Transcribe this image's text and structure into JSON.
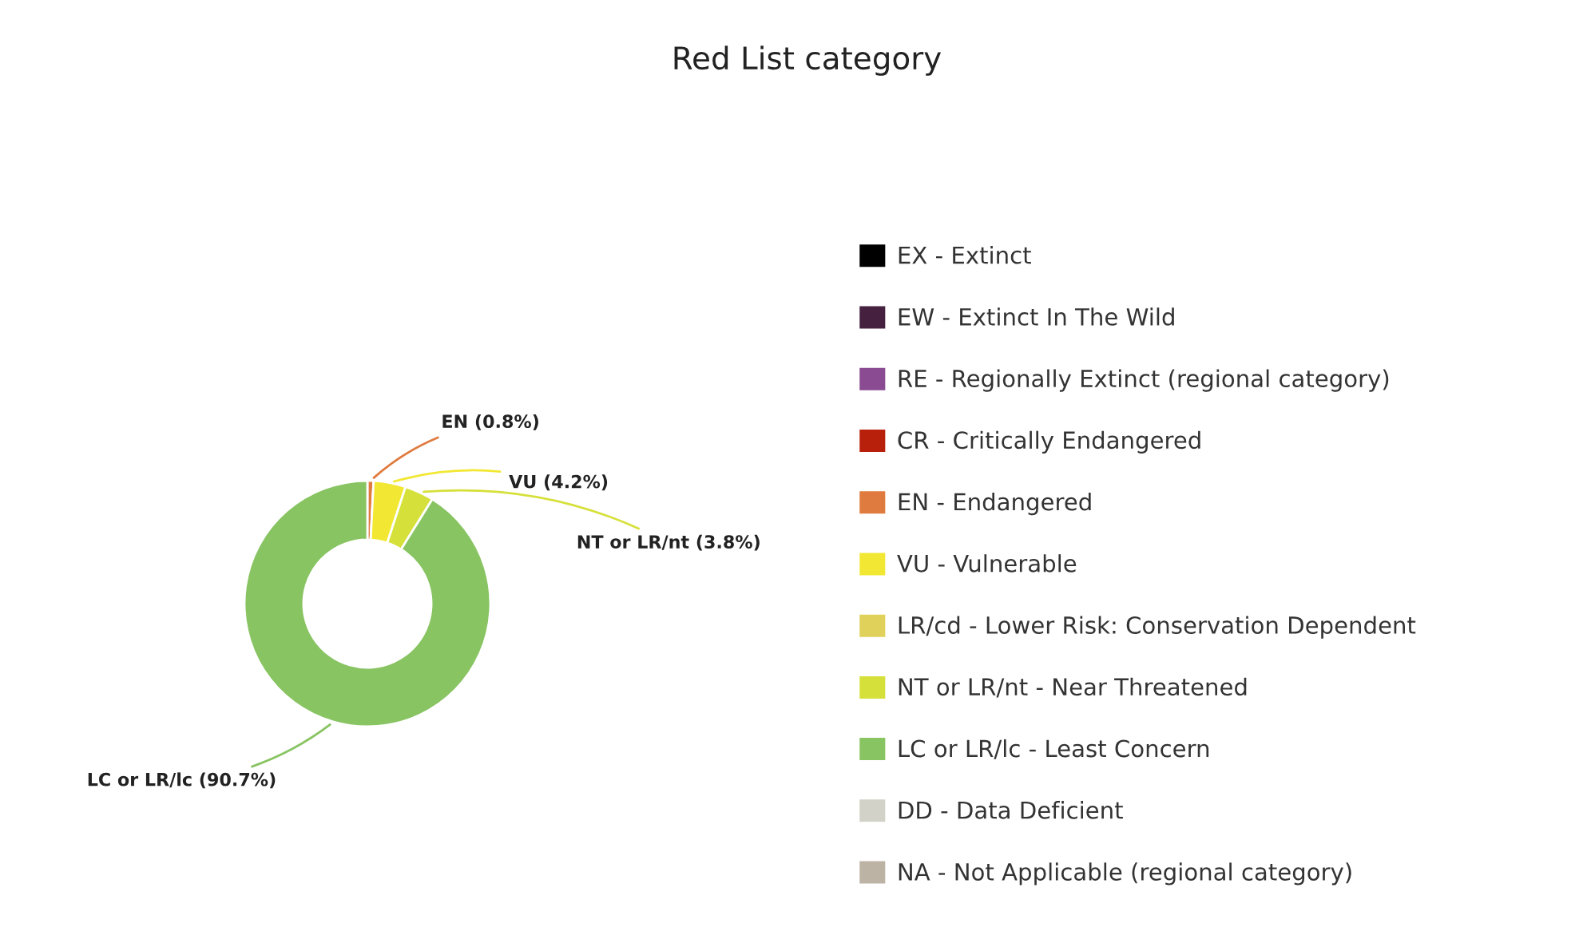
{
  "chart_data": {
    "type": "donut",
    "title": "Red List category",
    "categories": [
      "EX - Extinct",
      "EW - Extinct In The Wild",
      "RE - Regionally Extinct (regional category)",
      "CR - Critically Endangered",
      "EN - Endangered",
      "VU - Vulnerable",
      "LR/cd - Lower Risk: Conservation Dependent",
      "NT or LR/nt - Near Threatened",
      "LC or LR/lc - Least Concern",
      "DD - Data Deficient",
      "NA - Not Applicable (regional category)"
    ],
    "values": [
      0,
      0,
      0,
      0,
      0.8,
      4.2,
      0,
      3.8,
      90.7,
      0,
      0
    ],
    "colors": [
      "#000000",
      "#45213f",
      "#8a4b93",
      "#b9200c",
      "#e07b3f",
      "#f2e834",
      "#e0d15a",
      "#d6e03a",
      "#88c462",
      "#d2d2c8",
      "#bdb3a5"
    ],
    "value_labels": [
      null,
      null,
      null,
      null,
      "EN (0.8%)",
      "VU (4.2%)",
      null,
      "NT or LR/nt (3.8%)",
      "LC or LR/lc (90.7%)",
      null,
      null
    ],
    "legend": "right"
  }
}
